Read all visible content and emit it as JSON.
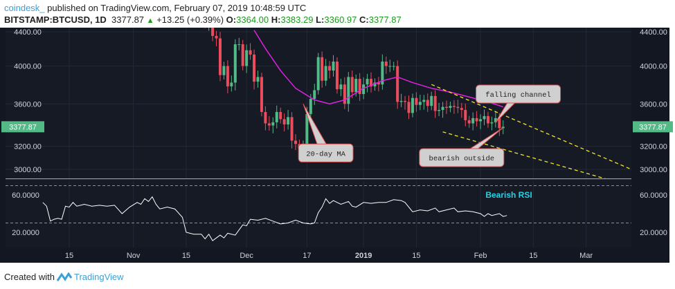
{
  "header": {
    "author": "coindesk_",
    "published": "published on TradingView.com, February 07, 2019 10:48:59 UTC",
    "symbol": "BITSTAMP:BTCUSD, 1D",
    "last": "3377.87",
    "change": "+13.25 (+0.39%)",
    "o_label": "O:",
    "o": "3364.00",
    "h_label": "H:",
    "h": "3383.29",
    "l_label": "L:",
    "l": "3360.97",
    "c_label": "C:",
    "c": "3377.87"
  },
  "footer": {
    "created_with": "Created with",
    "brand": "TradingView"
  },
  "colors": {
    "bg": "#161a25",
    "up": "#53b987",
    "down": "#eb4d5c",
    "ma": "#e020e0",
    "rsi": "#ffffff",
    "channel": "#f5e52a",
    "accent": "#3aa0d8"
  },
  "chart_data": {
    "type": "candlestick",
    "price_ticks": [
      4400,
      4000,
      3600,
      3200,
      3000
    ],
    "price_tick_labels": [
      "4400.00",
      "4000.00",
      "3600.00",
      "3200.00",
      "3000.00"
    ],
    "last_price_label": "3377.87",
    "rsi_ticks": [
      60,
      20
    ],
    "rsi_tick_labels": [
      "60.0000",
      "20.0000"
    ],
    "x_ticks": [
      {
        "day": 0,
        "label": "15"
      },
      {
        "day": 17,
        "label": "Nov"
      },
      {
        "day": 31,
        "label": "15"
      },
      {
        "day": 47,
        "label": "Dec"
      },
      {
        "day": 63,
        "label": "17"
      },
      {
        "day": 78,
        "label": "2019",
        "bold": true
      },
      {
        "day": 92,
        "label": "15"
      },
      {
        "day": 109,
        "label": "Feb"
      },
      {
        "day": 123,
        "label": "15"
      },
      {
        "day": 137,
        "label": "Mar"
      }
    ],
    "day_origin": "Oct 15 2018",
    "candles_start_day": 36,
    "first_open": 4700,
    "closes": [
      4500,
      4600,
      4350,
      4320,
      3900,
      4000,
      3780,
      3820,
      4250,
      4250,
      4000,
      4180,
      4130,
      3830,
      3880,
      3520,
      3410,
      3390,
      3420,
      3520,
      3450,
      3400,
      3470,
      3250,
      3220,
      3180,
      3200,
      3500,
      3650,
      3740,
      4100,
      3840,
      4000,
      3950,
      4050,
      3750,
      3800,
      3600,
      3880,
      3720,
      3860,
      3700,
      3800,
      3860,
      3780,
      3820,
      3800,
      4050,
      4000,
      4000,
      4000,
      3620,
      3630,
      3620,
      3510,
      3660,
      3590,
      3620,
      3640,
      3580,
      3680,
      3530,
      3540,
      3570,
      3560,
      3580,
      3570,
      3560,
      3540,
      3440,
      3410,
      3460,
      3430,
      3450,
      3480,
      3410,
      3420,
      3460,
      3365,
      3378
    ],
    "ma20": [
      [
        49,
        4420
      ],
      [
        52,
        4200
      ],
      [
        56,
        3950
      ],
      [
        60,
        3760
      ],
      [
        65,
        3640
      ],
      [
        69,
        3600
      ],
      [
        73,
        3640
      ],
      [
        78,
        3760
      ],
      [
        83,
        3840
      ],
      [
        87,
        3880
      ],
      [
        91,
        3820
      ],
      [
        96,
        3760
      ],
      [
        101,
        3720
      ],
      [
        106,
        3670
      ],
      [
        111,
        3620
      ],
      [
        115,
        3570
      ]
    ],
    "rsi": [
      [
        -7,
        52
      ],
      [
        -6,
        48
      ],
      [
        -5,
        32
      ],
      [
        -4,
        34
      ],
      [
        -3,
        35
      ],
      [
        -2,
        34
      ],
      [
        -1,
        48
      ],
      [
        0,
        47
      ],
      [
        1,
        52
      ],
      [
        2,
        48
      ],
      [
        4,
        50
      ],
      [
        6,
        48
      ],
      [
        8,
        49
      ],
      [
        10,
        48
      ],
      [
        12,
        49
      ],
      [
        14,
        40
      ],
      [
        16,
        47
      ],
      [
        18,
        52
      ],
      [
        19,
        50
      ],
      [
        20,
        56
      ],
      [
        21,
        53
      ],
      [
        22,
        58
      ],
      [
        23,
        50
      ],
      [
        24,
        45
      ],
      [
        26,
        47
      ],
      [
        28,
        45
      ],
      [
        30,
        36
      ],
      [
        31,
        20
      ],
      [
        33,
        18
      ],
      [
        35,
        18
      ],
      [
        36,
        13
      ],
      [
        37,
        18
      ],
      [
        38,
        11
      ],
      [
        40,
        17
      ],
      [
        41,
        14
      ],
      [
        42,
        19
      ],
      [
        44,
        17
      ],
      [
        46,
        28
      ],
      [
        47,
        27
      ],
      [
        48,
        34
      ],
      [
        50,
        33
      ],
      [
        52,
        35
      ],
      [
        54,
        32
      ],
      [
        56,
        29
      ],
      [
        58,
        30
      ],
      [
        60,
        33
      ],
      [
        62,
        30
      ],
      [
        64,
        29
      ],
      [
        65,
        30
      ],
      [
        66,
        41
      ],
      [
        67,
        47
      ],
      [
        68,
        56
      ],
      [
        69,
        51
      ],
      [
        70,
        54
      ],
      [
        72,
        50
      ],
      [
        74,
        53
      ],
      [
        75,
        48
      ],
      [
        76,
        47
      ],
      [
        78,
        52
      ],
      [
        80,
        51
      ],
      [
        82,
        52
      ],
      [
        84,
        52
      ],
      [
        86,
        55
      ],
      [
        88,
        54
      ],
      [
        89,
        52
      ],
      [
        91,
        42
      ],
      [
        93,
        44
      ],
      [
        95,
        43
      ],
      [
        97,
        46
      ],
      [
        98,
        42
      ],
      [
        100,
        44
      ],
      [
        102,
        46
      ],
      [
        103,
        42
      ],
      [
        105,
        43
      ],
      [
        107,
        42
      ],
      [
        109,
        40
      ],
      [
        110,
        37
      ],
      [
        111,
        40
      ],
      [
        112,
        38
      ],
      [
        114,
        40
      ],
      [
        115,
        37
      ],
      [
        116,
        38
      ]
    ],
    "channel": [
      [
        [
          96,
          3800
        ],
        [
          149,
          3000
        ]
      ],
      [
        [
          99,
          3330
        ],
        [
          147,
          2880
        ]
      ]
    ],
    "annotations": [
      {
        "text": "falling channel",
        "day": 119,
        "price": 3700,
        "tip": [
          113,
          3420
        ]
      },
      {
        "text": "20-day MA",
        "day": 68,
        "price": 3140,
        "tip": [
          62,
          3600
        ]
      },
      {
        "text": "bearish outside",
        "day": 104,
        "price": 3100,
        "tip": [
          115,
          3370
        ]
      }
    ],
    "rsi_annotation": "Bearish RSI"
  }
}
